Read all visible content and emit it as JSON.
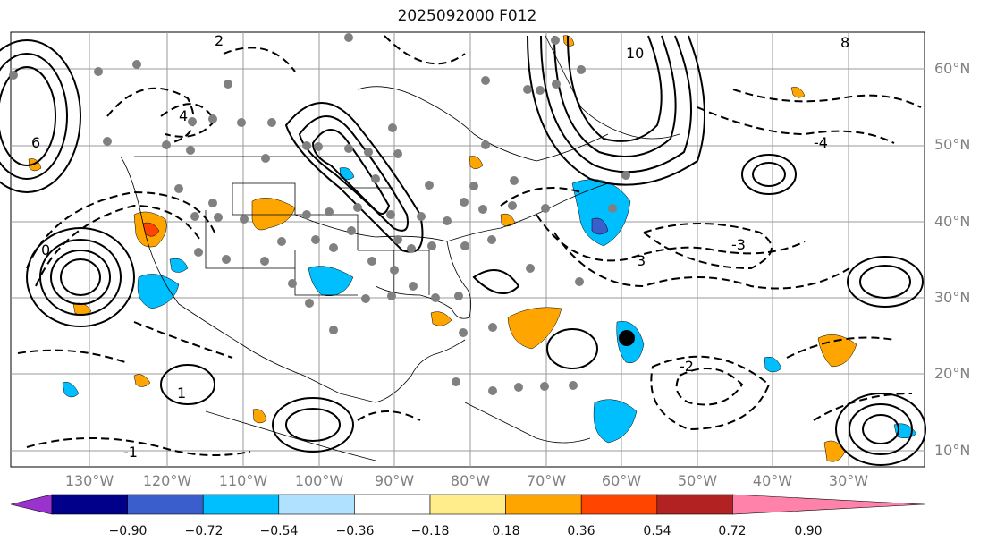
{
  "title": "2025092000 F012",
  "lat_labels": [
    "60°N",
    "50°N",
    "40°N",
    "30°N",
    "20°N",
    "10°N"
  ],
  "lon_labels": [
    "130°W",
    "120°W",
    "110°W",
    "100°W",
    "90°W",
    "80°W",
    "70°W",
    "60°W",
    "50°W",
    "40°W",
    "30°W"
  ],
  "contour_labels": [
    "0",
    "2",
    "4",
    "6",
    "8",
    "10",
    "-1",
    "-2",
    "-3",
    "-4",
    "1",
    "3"
  ],
  "colorbar": {
    "ticks": [
      "−0.90",
      "−0.72",
      "−0.54",
      "−0.36",
      "−0.18",
      "0.18",
      "0.36",
      "0.54",
      "0.72",
      "0.90"
    ],
    "colors": [
      "#9a32cd",
      "#00008b",
      "#3a5fcd",
      "#00bfff",
      "#b0e2ff",
      "#ffffff",
      "#ffec8b",
      "#ffa500",
      "#ff4500",
      "#b22222",
      "#ff82ab"
    ]
  }
}
